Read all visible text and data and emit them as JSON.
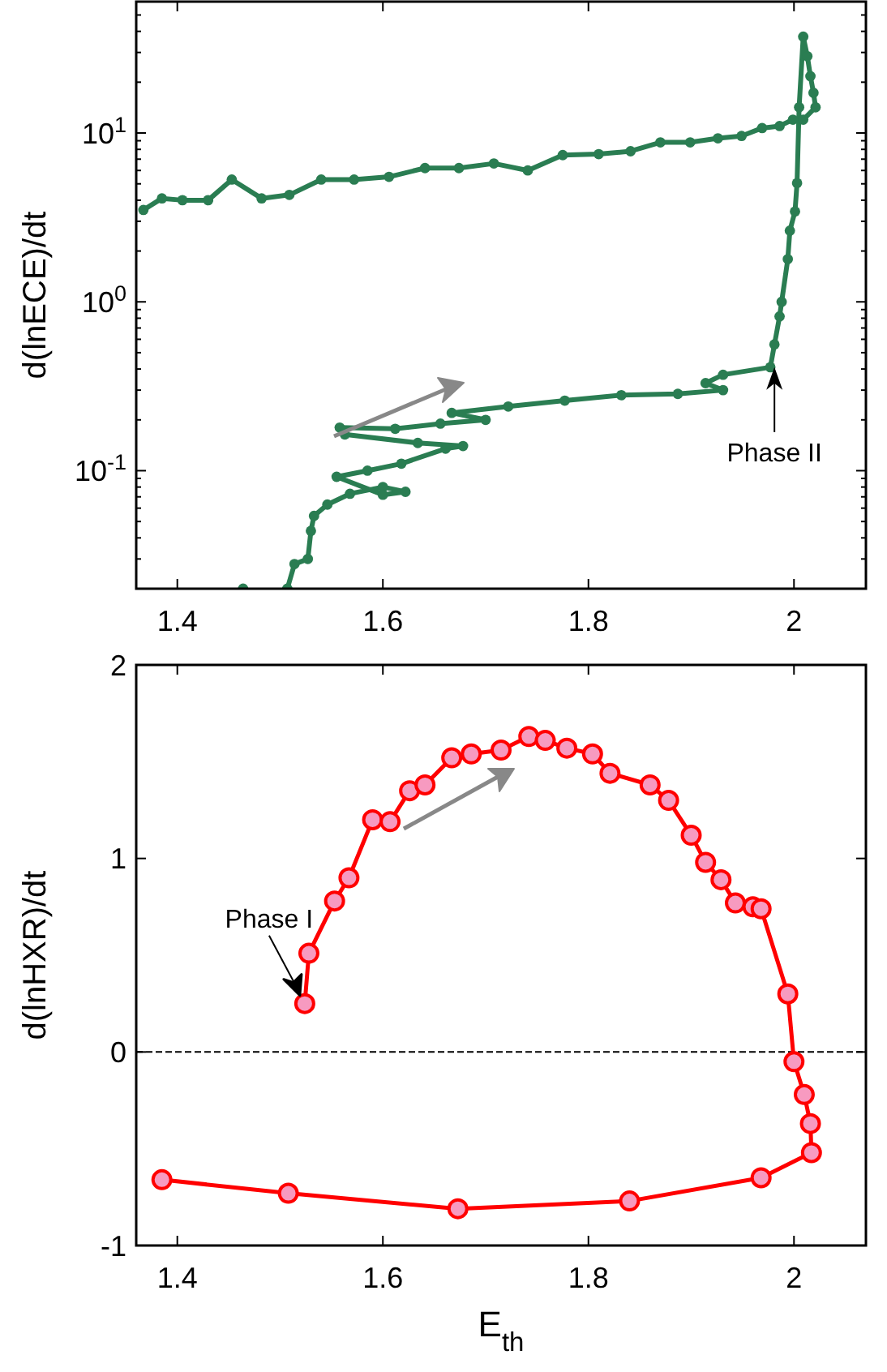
{
  "chart_data": [
    {
      "type": "line",
      "ylabel": "d(lnECE)/dt",
      "log": "y",
      "marker": "circle",
      "line_style": "solid",
      "grid": false,
      "xlim": [
        1.36,
        2.07
      ],
      "xticks": [
        1.4,
        1.6,
        1.8,
        2
      ],
      "ylim": [
        0.02,
        60
      ],
      "yticks": [
        {
          "value": 0.02,
          "label": null
        },
        {
          "value": 0.03,
          "label": null
        },
        {
          "value": 0.04,
          "label": null
        },
        {
          "value": 0.05,
          "label": null
        },
        {
          "value": 0.06,
          "label": null
        },
        {
          "value": 0.07,
          "label": null
        },
        {
          "value": 0.08,
          "label": null
        },
        {
          "value": 0.09,
          "label": null
        },
        {
          "value": 0.1,
          "label": "10$^{-1}$"
        },
        {
          "value": 0.2,
          "label": null
        },
        {
          "value": 0.3,
          "label": null
        },
        {
          "value": 0.4,
          "label": null
        },
        {
          "value": 0.5,
          "label": null
        },
        {
          "value": 0.6,
          "label": null
        },
        {
          "value": 0.7,
          "label": null
        },
        {
          "value": 0.8,
          "label": null
        },
        {
          "value": 0.9,
          "label": null
        },
        {
          "value": 1,
          "label": "10$^{0}$"
        },
        {
          "value": 2,
          "label": null
        },
        {
          "value": 3,
          "label": null
        },
        {
          "value": 4,
          "label": null
        },
        {
          "value": 5,
          "label": null
        },
        {
          "value": 6,
          "label": null
        },
        {
          "value": 7,
          "label": null
        },
        {
          "value": 8,
          "label": null
        },
        {
          "value": 9,
          "label": null
        },
        {
          "value": 10,
          "label": "10$^{1}$"
        },
        {
          "value": 20,
          "label": null
        },
        {
          "value": 30,
          "label": null
        },
        {
          "value": 40,
          "label": null
        },
        {
          "value": 50,
          "label": null
        }
      ],
      "annotations": [
        {
          "text": "Phase II",
          "x": 1.981,
          "y": 0.41
        }
      ],
      "series": [
        {
          "color": "#2a7d52",
          "x": [
            1.464,
            1.48,
            1.507,
            1.514,
            1.527,
            1.53,
            1.533,
            1.546,
            1.568,
            1.6,
            1.622,
            1.6,
            1.555,
            1.585,
            1.618,
            1.661,
            1.678,
            1.634,
            1.563,
            1.558,
            1.612,
            1.656,
            1.7,
            1.667,
            1.722,
            1.777,
            1.832,
            1.887,
            1.931,
            1.914,
            1.931,
            1.977,
            1.981,
            1.986,
            1.988,
            1.994,
            1.996,
            2.001,
            2.003,
            2.005,
            2.009,
            2.013,
            2.016,
            2.019,
            2.021,
            2.009,
            1.999,
            1.986,
            1.969,
            1.949,
            1.926,
            1.899,
            1.87,
            1.841,
            1.81,
            1.775,
            1.741,
            1.708,
            1.674,
            1.641,
            1.606,
            1.572,
            1.54,
            1.509,
            1.482,
            1.453,
            1.43,
            1.405,
            1.385,
            1.367
          ],
          "values": [
            0.02,
            null,
            0.02,
            0.028,
            0.03,
            0.044,
            0.054,
            0.063,
            0.073,
            0.08,
            0.075,
            0.072,
            0.092,
            0.1,
            0.11,
            0.135,
            0.14,
            0.146,
            0.164,
            0.18,
            0.177,
            0.19,
            0.2,
            0.22,
            0.24,
            0.26,
            0.28,
            0.285,
            0.3,
            0.33,
            0.37,
            0.41,
            0.56,
            0.82,
            1.0,
            1.79,
            2.64,
            3.43,
            5.05,
            14.2,
            37.2,
            28.5,
            21.7,
            17.3,
            14.2,
            12.0,
            12.0,
            11.0,
            10.7,
            9.6,
            9.3,
            8.8,
            8.8,
            7.8,
            7.5,
            7.4,
            6.0,
            6.6,
            6.2,
            6.2,
            5.5,
            5.3,
            5.3,
            4.3,
            4.1,
            5.3,
            4.0,
            4.0,
            4.1,
            3.5
          ]
        }
      ]
    },
    {
      "type": "line",
      "xlabel": "E$_{th}$",
      "ylabel": "d(lnHXR)/dt",
      "marker": "circle",
      "line_style": "solid",
      "grid": false,
      "xlim": [
        1.36,
        2.07
      ],
      "xticks": [
        1.4,
        1.6,
        1.8,
        2
      ],
      "ylim": [
        -1,
        2
      ],
      "yticks": [
        -1,
        0,
        1,
        2
      ],
      "ref_lines": [
        {
          "axis": "y",
          "value": 0,
          "color": "#000000",
          "line_style": "dashed"
        }
      ],
      "annotations": [
        {
          "text": "Phase I",
          "x": 1.524,
          "y": 0.25
        }
      ],
      "series": [
        {
          "color": "#ff0000",
          "x": [
            1.524,
            1.528,
            1.553,
            1.567,
            1.59,
            1.607,
            1.626,
            1.641,
            1.667,
            1.686,
            1.715,
            1.742,
            1.758,
            1.779,
            1.804,
            1.821,
            1.86,
            1.878,
            1.9,
            1.914,
            1.929,
            1.943,
            1.96,
            1.968,
            1.994,
            2.0,
            2.01,
            2.016,
            2.017,
            1.968,
            1.84,
            1.673,
            1.508,
            1.385
          ],
          "values": [
            0.25,
            0.51,
            0.78,
            0.9,
            1.2,
            1.19,
            1.35,
            1.38,
            1.52,
            1.54,
            1.56,
            1.63,
            1.61,
            1.57,
            1.54,
            1.44,
            1.38,
            1.3,
            1.12,
            0.98,
            0.89,
            0.77,
            0.75,
            0.74,
            0.3,
            -0.05,
            -0.22,
            -0.37,
            -0.52,
            -0.65,
            -0.77,
            -0.81,
            -0.73,
            -0.66
          ]
        }
      ]
    }
  ]
}
